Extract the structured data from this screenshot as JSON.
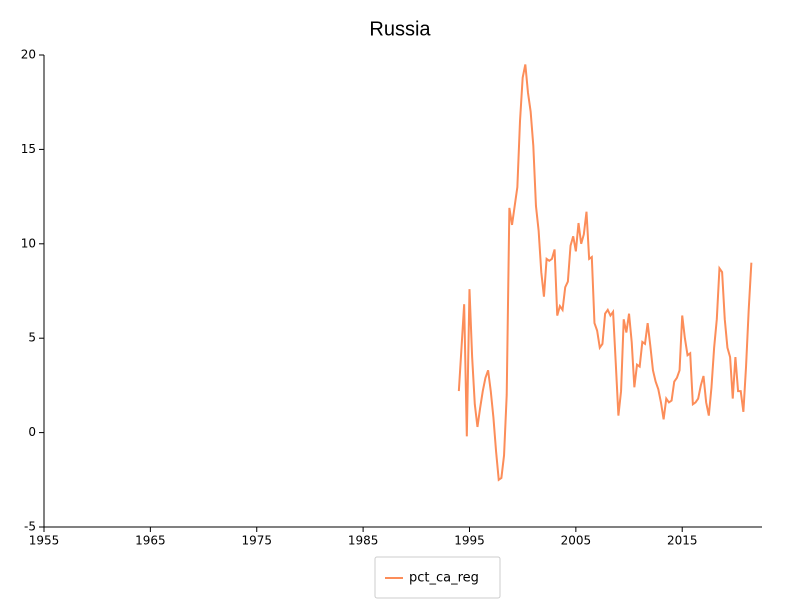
{
  "chart_data": {
    "type": "line",
    "title": "Russia",
    "x": [
      1994,
      1994.25,
      1994.5,
      1994.75,
      1995,
      1995.25,
      1995.5,
      1995.75,
      1996,
      1996.25,
      1996.5,
      1996.75,
      1997,
      1997.25,
      1997.5,
      1997.75,
      1998,
      1998.25,
      1998.5,
      1998.75,
      1999,
      1999.25,
      1999.5,
      1999.75,
      2000,
      2000.25,
      2000.5,
      2000.75,
      2001,
      2001.25,
      2001.5,
      2001.75,
      2002,
      2002.25,
      2002.5,
      2002.75,
      2003,
      2003.25,
      2003.5,
      2003.75,
      2004,
      2004.25,
      2004.5,
      2004.75,
      2005,
      2005.25,
      2005.5,
      2005.75,
      2006,
      2006.25,
      2006.5,
      2006.75,
      2007,
      2007.25,
      2007.5,
      2007.75,
      2008,
      2008.25,
      2008.5,
      2008.75,
      2009,
      2009.25,
      2009.5,
      2009.75,
      2010,
      2010.25,
      2010.5,
      2010.75,
      2011,
      2011.25,
      2011.5,
      2011.75,
      2012,
      2012.25,
      2012.5,
      2012.75,
      2013,
      2013.25,
      2013.5,
      2013.75,
      2014,
      2014.25,
      2014.5,
      2014.75,
      2015,
      2015.25,
      2015.5,
      2015.75,
      2016,
      2016.25,
      2016.5,
      2016.75,
      2017,
      2017.25,
      2017.5,
      2017.75,
      2018,
      2018.25,
      2018.5,
      2018.75,
      2019,
      2019.25,
      2019.5,
      2019.75,
      2020,
      2020.25,
      2020.5,
      2020.75,
      2021,
      2021.25,
      2021.5
    ],
    "series": [
      {
        "name": "pct_ca_reg",
        "color": "#fc8d59",
        "values": [
          2.2,
          4.5,
          6.8,
          -0.2,
          7.6,
          4.0,
          1.5,
          0.3,
          1.3,
          2.2,
          2.9,
          3.3,
          2.2,
          0.8,
          -1.0,
          -2.5,
          -2.4,
          -1.2,
          2.0,
          11.9,
          11.0,
          12.0,
          13.0,
          16.5,
          18.8,
          19.5,
          18.0,
          17.0,
          15.2,
          12.0,
          10.7,
          8.5,
          7.2,
          9.2,
          9.1,
          9.2,
          9.7,
          6.2,
          6.7,
          6.5,
          7.7,
          8.0,
          9.9,
          10.4,
          9.6,
          11.1,
          10.0,
          10.5,
          11.7,
          9.2,
          9.3,
          5.8,
          5.4,
          4.5,
          4.7,
          6.3,
          6.5,
          6.2,
          6.4,
          3.7,
          0.9,
          2.2,
          6.0,
          5.3,
          6.3,
          4.8,
          2.4,
          3.6,
          3.5,
          4.8,
          4.7,
          5.8,
          4.6,
          3.3,
          2.7,
          2.3,
          1.6,
          0.7,
          1.8,
          1.6,
          1.7,
          2.7,
          2.9,
          3.3,
          6.2,
          5.0,
          4.1,
          4.2,
          1.5,
          1.6,
          1.8,
          2.5,
          3.0,
          1.6,
          0.9,
          2.4,
          4.5,
          6.0,
          8.7,
          8.5,
          6.0,
          4.5,
          4.0,
          1.8,
          4.0,
          2.2,
          2.2,
          1.1,
          3.5,
          6.5,
          9.0
        ]
      }
    ],
    "xlim": [
      1955,
      2022.5
    ],
    "xticks": [
      1955,
      1965,
      1975,
      1985,
      1995,
      2005,
      2015
    ],
    "ylim": [
      -5,
      20
    ],
    "yticks": [
      -5,
      0,
      5,
      10,
      15,
      20
    ],
    "legend": "bottom"
  }
}
